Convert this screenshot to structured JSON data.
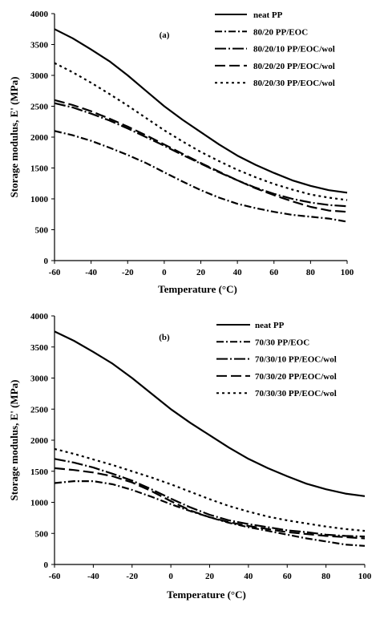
{
  "chart_data": [
    {
      "type": "line",
      "panel_label": "(a)",
      "xlabel": "Temperature (°C)",
      "ylabel": "Storage modulus, E' (MPa)",
      "xlim": [
        -60,
        100
      ],
      "ylim": [
        0,
        4000
      ],
      "xticks": [
        "-60",
        "-40",
        "-20",
        "0",
        "20",
        "40",
        "60",
        "80",
        "100"
      ],
      "yticks": [
        "0",
        "500",
        "1000",
        "1500",
        "2000",
        "2500",
        "3000",
        "3500",
        "4000"
      ],
      "legend_position": "top-right",
      "x": [
        -60,
        -50,
        -40,
        -30,
        -20,
        -10,
        0,
        10,
        20,
        30,
        40,
        50,
        60,
        70,
        80,
        90,
        100
      ],
      "series": [
        {
          "name": "neat PP",
          "dash": "solid",
          "values": [
            3750,
            3600,
            3420,
            3230,
            3000,
            2750,
            2500,
            2280,
            2080,
            1880,
            1700,
            1550,
            1420,
            1300,
            1210,
            1140,
            1100
          ]
        },
        {
          "name": "80/20 PP/EOC",
          "dash": "dashdot",
          "values": [
            2100,
            2030,
            1940,
            1830,
            1710,
            1580,
            1430,
            1280,
            1140,
            1020,
            920,
            850,
            790,
            740,
            710,
            680,
            630
          ]
        },
        {
          "name": "80/20/10 PP/EOC/wol",
          "dash": "dashdotlong",
          "values": [
            2550,
            2480,
            2380,
            2270,
            2140,
            2000,
            1860,
            1710,
            1570,
            1430,
            1300,
            1180,
            1080,
            1000,
            940,
            900,
            880
          ]
        },
        {
          "name": "80/20/20 PP/EOC/wol",
          "dash": "longdash",
          "values": [
            2600,
            2520,
            2420,
            2300,
            2170,
            2030,
            1880,
            1730,
            1580,
            1440,
            1300,
            1170,
            1060,
            960,
            870,
            810,
            790
          ]
        },
        {
          "name": "80/20/30 PP/EOC/wol",
          "dash": "dotted",
          "values": [
            3200,
            3050,
            2880,
            2700,
            2510,
            2310,
            2110,
            1930,
            1760,
            1610,
            1470,
            1350,
            1240,
            1150,
            1070,
            1020,
            980
          ]
        }
      ]
    },
    {
      "type": "line",
      "panel_label": "(b)",
      "xlabel": "Temperature (°C)",
      "ylabel": "Storage modulus, E' (MPa)",
      "xlim": [
        -60,
        100
      ],
      "ylim": [
        0,
        4000
      ],
      "xticks": [
        "-60",
        "-40",
        "-20",
        "0",
        "20",
        "40",
        "60",
        "80",
        "100"
      ],
      "yticks": [
        "0",
        "500",
        "1000",
        "1500",
        "2000",
        "2500",
        "3000",
        "3500",
        "4000"
      ],
      "legend_position": "top-right",
      "x": [
        -60,
        -50,
        -40,
        -30,
        -20,
        -10,
        0,
        10,
        20,
        30,
        40,
        50,
        60,
        70,
        80,
        90,
        100
      ],
      "series": [
        {
          "name": "neat PP",
          "dash": "solid",
          "values": [
            3750,
            3600,
            3420,
            3230,
            3000,
            2750,
            2500,
            2280,
            2080,
            1880,
            1700,
            1550,
            1420,
            1300,
            1210,
            1140,
            1100
          ]
        },
        {
          "name": "70/30 PP/EOC",
          "dash": "dashdot",
          "values": [
            1310,
            1340,
            1340,
            1290,
            1200,
            1090,
            970,
            860,
            760,
            670,
            600,
            540,
            480,
            420,
            370,
            320,
            300
          ]
        },
        {
          "name": "70/30/10 PP/EOC/wol",
          "dash": "dashdotlong",
          "values": [
            1700,
            1640,
            1560,
            1460,
            1350,
            1210,
            1060,
            920,
            800,
            710,
            650,
            600,
            550,
            520,
            480,
            460,
            450
          ]
        },
        {
          "name": "70/30/20 PP/EOC/wol",
          "dash": "longdash",
          "values": [
            1550,
            1520,
            1480,
            1420,
            1320,
            1180,
            1020,
            870,
            760,
            680,
            620,
            570,
            520,
            490,
            460,
            440,
            420
          ]
        },
        {
          "name": "70/30/30 PP/EOC/wol",
          "dash": "dotted",
          "values": [
            1860,
            1780,
            1690,
            1600,
            1500,
            1400,
            1290,
            1170,
            1050,
            940,
            850,
            770,
            710,
            660,
            610,
            570,
            540
          ]
        }
      ]
    }
  ]
}
